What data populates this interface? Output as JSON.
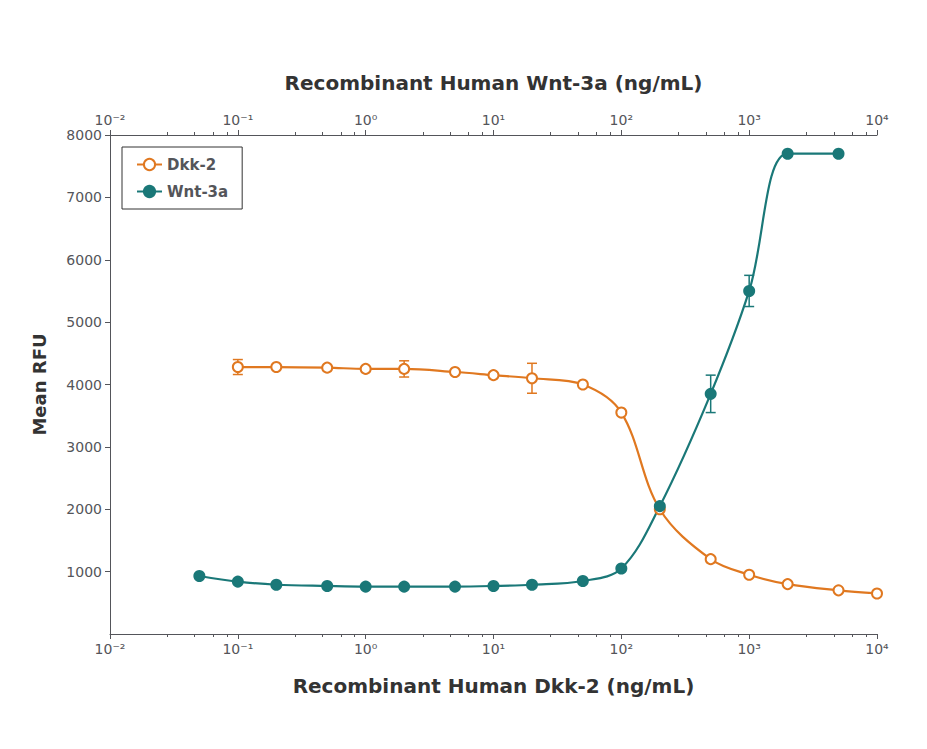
{
  "chart_data": {
    "type": "line",
    "xlabel": "Recombinant Human Dkk-2 (ng/mL)",
    "x2label": "Recombinant Human Wnt-3a (ng/mL)",
    "ylabel": "Mean RFU",
    "log": "x",
    "xlim": [
      0.01,
      10000
    ],
    "xticks": [
      {
        "value": 0.01,
        "label": "10⁻²"
      },
      {
        "value": 0.1,
        "label": "10⁻¹"
      },
      {
        "value": 1,
        "label": "10⁰"
      },
      {
        "value": 10,
        "label": "10¹"
      },
      {
        "value": 100,
        "label": "10²"
      },
      {
        "value": 1000,
        "label": "10³"
      },
      {
        "value": 10000,
        "label": "10⁴"
      }
    ],
    "ylim": [
      0,
      8000
    ],
    "yticks": [
      1000,
      2000,
      3000,
      4000,
      5000,
      6000,
      7000,
      8000
    ],
    "grid": false,
    "legend": "upper left",
    "series": [
      {
        "name": "Dkk-2",
        "color": "#E07820",
        "marker": "circle-open",
        "line_style": "solid",
        "x": [
          0.1,
          0.2,
          0.5,
          1.0,
          2.0,
          5.0,
          10.0,
          20.0,
          50.0,
          100.0,
          200.0,
          500.0,
          1000.0,
          2000.0,
          5000.0,
          10000.0
        ],
        "values": [
          4280,
          4280,
          4270,
          4250,
          4250,
          4200,
          4150,
          4100,
          4000,
          3550,
          2000,
          1200,
          950,
          800,
          700,
          650
        ],
        "yerr": [
          120,
          0,
          0,
          0,
          130,
          0,
          0,
          240,
          0,
          0,
          0,
          0,
          0,
          0,
          0,
          0
        ]
      },
      {
        "name": "Wnt-3a",
        "color": "#1A7878",
        "marker": "circle",
        "line_style": "solid",
        "axis": "x2",
        "x": [
          0.05,
          0.1,
          0.2,
          0.5,
          1.0,
          2.0,
          5.0,
          10.0,
          20.0,
          50.0,
          100.0,
          200.0,
          500.0,
          1000.0,
          2000.0,
          5000.0
        ],
        "values": [
          930,
          840,
          790,
          770,
          760,
          760,
          760,
          770,
          790,
          850,
          1050,
          2050,
          3850,
          5500,
          7700,
          7700
        ],
        "yerr": [
          0,
          0,
          0,
          0,
          0,
          0,
          0,
          0,
          0,
          0,
          0,
          0,
          300,
          250,
          0,
          0
        ]
      }
    ]
  }
}
